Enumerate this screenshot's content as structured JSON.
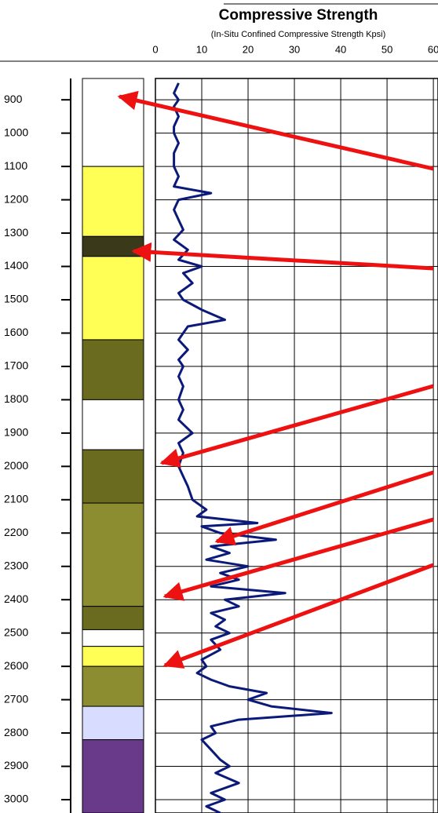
{
  "chart_data": {
    "type": "line",
    "title": "Compressive Strength",
    "subtitle": "(In-Situ Confined Compressive Strength Kpsi)",
    "x": [
      850,
      880,
      900,
      920,
      950,
      980,
      1000,
      1030,
      1060,
      1100,
      1130,
      1160,
      1180,
      1200,
      1230,
      1260,
      1290,
      1320,
      1350,
      1380,
      1400,
      1420,
      1450,
      1480,
      1500,
      1530,
      1560,
      1580,
      1600,
      1620,
      1650,
      1680,
      1700,
      1730,
      1760,
      1800,
      1830,
      1860,
      1900,
      1930,
      1960,
      2000,
      2030,
      2060,
      2100,
      2130,
      2150,
      2170,
      2180,
      2200,
      2220,
      2240,
      2260,
      2280,
      2300,
      2320,
      2340,
      2360,
      2380,
      2400,
      2420,
      2440,
      2460,
      2480,
      2500,
      2520,
      2550,
      2580,
      2600,
      2620,
      2640,
      2660,
      2680,
      2700,
      2720,
      2740,
      2760,
      2780,
      2800,
      2820,
      2850,
      2880,
      2900,
      2920,
      2950,
      2980,
      3000,
      3020,
      3040
    ],
    "series": [
      {
        "color": "#0b1a7a",
        "values": [
          5,
          4,
          5,
          4,
          5,
          4,
          4,
          5,
          4,
          4,
          5,
          4,
          12,
          5,
          4,
          5,
          6,
          4,
          7,
          5,
          10,
          6,
          8,
          5,
          6,
          10,
          15,
          7,
          6,
          5,
          7,
          5,
          6,
          5,
          6,
          5,
          6,
          5,
          8,
          5,
          6,
          5,
          6,
          7,
          8,
          11,
          9,
          22,
          10,
          14,
          26,
          12,
          16,
          11,
          20,
          14,
          18,
          12,
          28,
          15,
          18,
          12,
          15,
          13,
          16,
          12,
          14,
          10,
          11,
          9,
          12,
          16,
          24,
          20,
          25,
          38,
          18,
          12,
          13,
          10,
          12,
          14,
          16,
          13,
          18,
          12,
          15,
          11,
          14
        ]
      }
    ],
    "xlim": [
      0,
      61
    ],
    "xticks": [
      0,
      10,
      20,
      30,
      40,
      50,
      60
    ],
    "ylim": [
      836,
      3040
    ],
    "yticks": [
      900,
      1000,
      1100,
      1200,
      1300,
      1400,
      1500,
      1600,
      1700,
      1800,
      1900,
      2000,
      2100,
      2200,
      2300,
      2400,
      2500,
      2600,
      2700,
      2800,
      2900,
      3000
    ],
    "grid": true,
    "lithology": [
      {
        "top": 836,
        "bottom": 1100,
        "color": "#ffffff"
      },
      {
        "top": 1100,
        "bottom": 1310,
        "color": "#ffff55"
      },
      {
        "top": 1310,
        "bottom": 1370,
        "color": "#3a3a1a"
      },
      {
        "top": 1370,
        "bottom": 1620,
        "color": "#ffff55"
      },
      {
        "top": 1620,
        "bottom": 1800,
        "color": "#6b6b20"
      },
      {
        "top": 1800,
        "bottom": 1950,
        "color": "#ffffff"
      },
      {
        "top": 1950,
        "bottom": 2110,
        "color": "#6b6b20"
      },
      {
        "top": 2110,
        "bottom": 2420,
        "color": "#8c8c30"
      },
      {
        "top": 2420,
        "bottom": 2490,
        "color": "#6b6b20"
      },
      {
        "top": 2490,
        "bottom": 2540,
        "color": "#ffffff"
      },
      {
        "top": 2540,
        "bottom": 2600,
        "color": "#ffff55"
      },
      {
        "top": 2600,
        "bottom": 2720,
        "color": "#8c8c30"
      },
      {
        "top": 2720,
        "bottom": 2820,
        "color": "#d8dcff"
      },
      {
        "top": 2820,
        "bottom": 3040,
        "color": "#6a3a8a"
      }
    ]
  }
}
